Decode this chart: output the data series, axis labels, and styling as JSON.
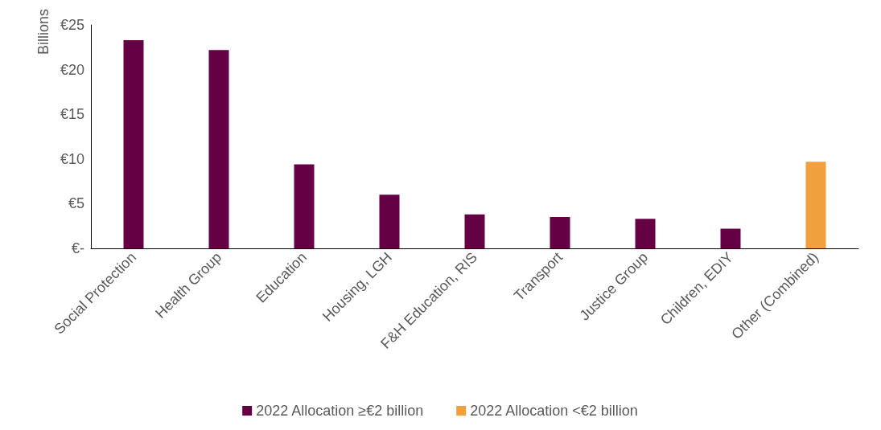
{
  "chart_data": {
    "type": "bar",
    "ylabel": "Billions",
    "stacked": true,
    "categories": [
      "Social Protection",
      "Health Group",
      "Education",
      "Housing, LGH",
      "F&H Education, RIS",
      "Transport",
      "Justice Group",
      "Children, EDIY",
      "Other (Combined)"
    ],
    "series": [
      {
        "name": "2022 Allocation ≥€2 billion",
        "color": "#660044",
        "values": [
          23.3,
          22.2,
          9.4,
          6.0,
          3.8,
          3.5,
          3.3,
          2.2,
          null
        ]
      },
      {
        "name": "2022 Allocation <€2 billion",
        "color": "#f0a03c",
        "values": [
          null,
          null,
          null,
          null,
          null,
          null,
          null,
          null,
          9.7
        ]
      }
    ],
    "ylim": [
      0,
      25
    ],
    "yticks": [
      {
        "value": 0,
        "label": "€-"
      },
      {
        "value": 5,
        "label": "€5"
      },
      {
        "value": 10,
        "label": "€10"
      },
      {
        "value": 15,
        "label": "€15"
      },
      {
        "value": 20,
        "label": "€20"
      },
      {
        "value": 25,
        "label": "€25"
      }
    ],
    "grid": false,
    "legend": "bottom"
  }
}
